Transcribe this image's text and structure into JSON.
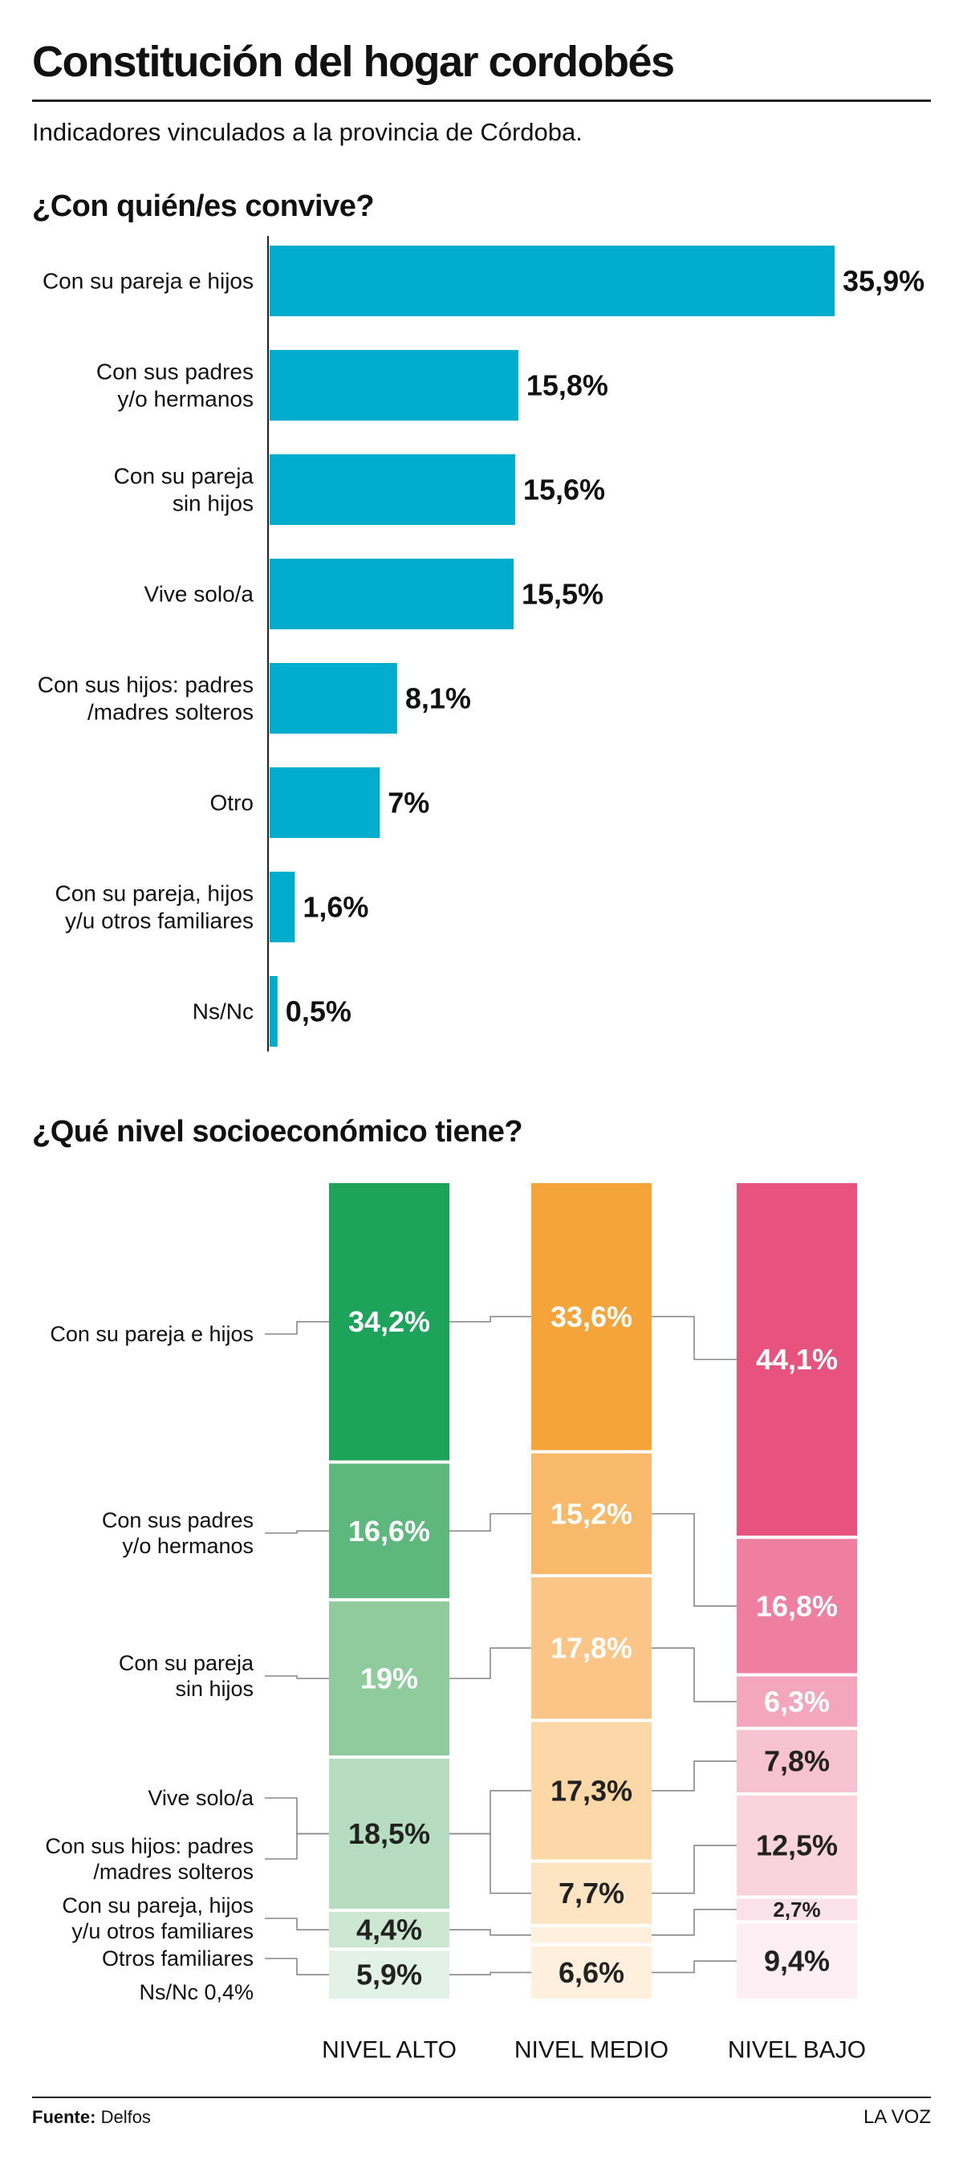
{
  "title": "Constitución del hogar cordobés",
  "subtitle": "Indicadores vinculados a la provincia de Córdoba.",
  "source_label": "Fuente:",
  "source_name": "Delfos",
  "brand": "LA VOZ",
  "colors": {
    "bar": "#00adcd",
    "alto": [
      "#1ea35a",
      "#5eb77d",
      "#8fcb9d",
      "#b6ddbf",
      "#cde8d2",
      "#e3f2e6"
    ],
    "medio": [
      "#f5a43a",
      "#f8b96a",
      "#fac586",
      "#fcd8a8",
      "#fde5c4",
      "#fef0dd"
    ],
    "bajo": [
      "#e8527f",
      "#ef7fa0",
      "#f3a6bd",
      "#f7c3d2",
      "#f9d4df",
      "#fbe2ea",
      "#fdeff3"
    ]
  },
  "chart_data": [
    {
      "type": "bar",
      "orientation": "horizontal",
      "title": "¿Con quién/es convive?",
      "categories": [
        [
          "Con su pareja e hijos"
        ],
        [
          "Con sus padres",
          "y/o hermanos"
        ],
        [
          "Con su pareja",
          "sin hijos"
        ],
        [
          "Vive solo/a"
        ],
        [
          "Con sus hijos: padres",
          "/madres solteros"
        ],
        [
          "Otro"
        ],
        [
          "Con su pareja, hijos",
          "y/u otros familiares"
        ],
        [
          "Ns/Nc"
        ]
      ],
      "values": [
        35.9,
        15.8,
        15.6,
        15.5,
        8.1,
        7,
        1.6,
        0.5
      ],
      "labels": [
        "35,9%",
        "15,8%",
        "15,6%",
        "15,5%",
        "8,1%",
        "7%",
        "1,6%",
        "0,5%"
      ],
      "xlim": [
        0,
        36
      ]
    },
    {
      "type": "bar",
      "stacked": true,
      "title": "¿Qué nivel socioeconómico tiene?",
      "categories": [
        "NIVEL ALTO",
        "NIVEL MEDIO",
        "NIVEL BAJO"
      ],
      "row_labels": [
        [
          "Con su pareja e hijos"
        ],
        [
          "Con sus padres",
          "y/o hermanos"
        ],
        [
          "Con su pareja",
          "sin hijos"
        ],
        [
          "Vive solo/a"
        ],
        [
          "Con sus hijos: padres",
          "/madres solteros"
        ],
        [
          "Con su pareja, hijos",
          "y/u otros familiares"
        ],
        [
          "Otros familiares"
        ]
      ],
      "extra_label": "Ns/Nc 0,4%",
      "columns": [
        {
          "name": "NIVEL ALTO",
          "segments": [
            {
              "row": 0,
              "value": 34.2,
              "label": "34,2%"
            },
            {
              "row": 1,
              "value": 16.6,
              "label": "16,6%"
            },
            {
              "row": 2,
              "value": 19,
              "label": "19%"
            },
            {
              "row": 3,
              "value": 18.5,
              "label": "18,5%",
              "rows": [
                3,
                4
              ]
            },
            {
              "row": 5,
              "value": 4.4,
              "label": "4,4%"
            },
            {
              "row": 6,
              "value": 5.9,
              "label": "5,9%"
            }
          ]
        },
        {
          "name": "NIVEL MEDIO",
          "segments": [
            {
              "row": 0,
              "value": 33.6,
              "label": "33,6%"
            },
            {
              "row": 1,
              "value": 15.2,
              "label": "15,2%"
            },
            {
              "row": 2,
              "value": 17.8,
              "label": "17,8%"
            },
            {
              "row": 3,
              "value": 17.3,
              "label": "17,3%"
            },
            {
              "row": 4,
              "value": 7.7,
              "label": "7,7%"
            },
            {
              "row": 5,
              "value": 1.6,
              "label": ""
            },
            {
              "row": 6,
              "value": 6.6,
              "label": "6,6%"
            }
          ]
        },
        {
          "name": "NIVEL BAJO",
          "segments": [
            {
              "row": 0,
              "value": 44.1,
              "label": "44,1%"
            },
            {
              "row": 1,
              "value": 16.8,
              "label": "16,8%"
            },
            {
              "row": 2,
              "value": 6.3,
              "label": "6,3%"
            },
            {
              "row": 3,
              "value": 7.8,
              "label": "7,8%"
            },
            {
              "row": 4,
              "value": 12.5,
              "label": "12,5%"
            },
            {
              "row": 5,
              "value": 2.7,
              "label": "2,7%"
            },
            {
              "row": 6,
              "value": 9.4,
              "label": "9,4%"
            }
          ]
        }
      ]
    }
  ]
}
